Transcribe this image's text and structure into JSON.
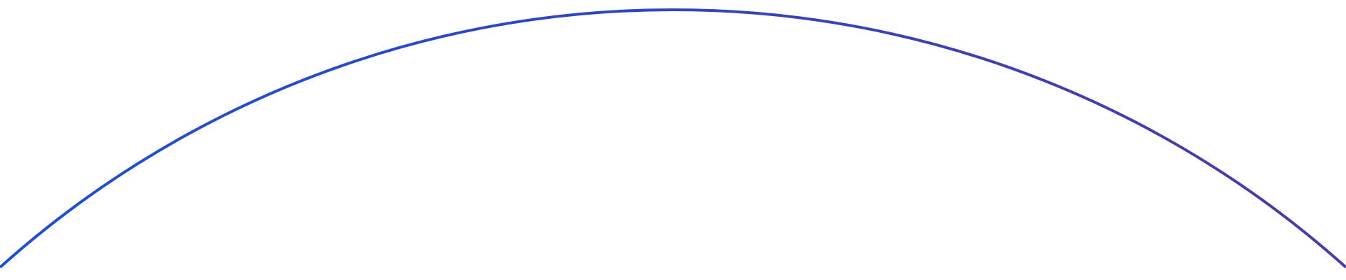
{
  "arc": {
    "color_start": "#1a50d8",
    "color_end": "#4a3aa8"
  }
}
